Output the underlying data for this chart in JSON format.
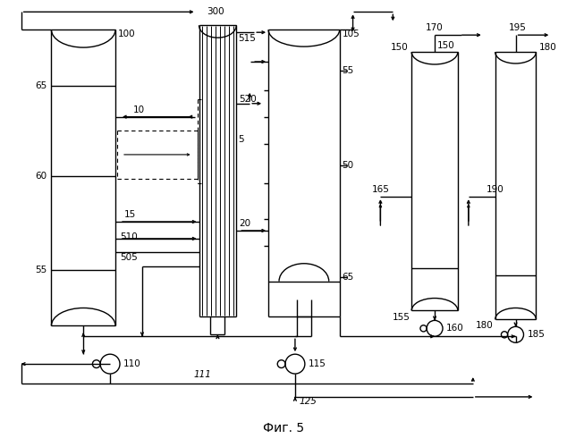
{
  "title": "Фиг. 5",
  "bg_color": "#ffffff",
  "line_color": "#000000",
  "fig_width": 6.34,
  "fig_height": 5.0,
  "dpi": 100
}
